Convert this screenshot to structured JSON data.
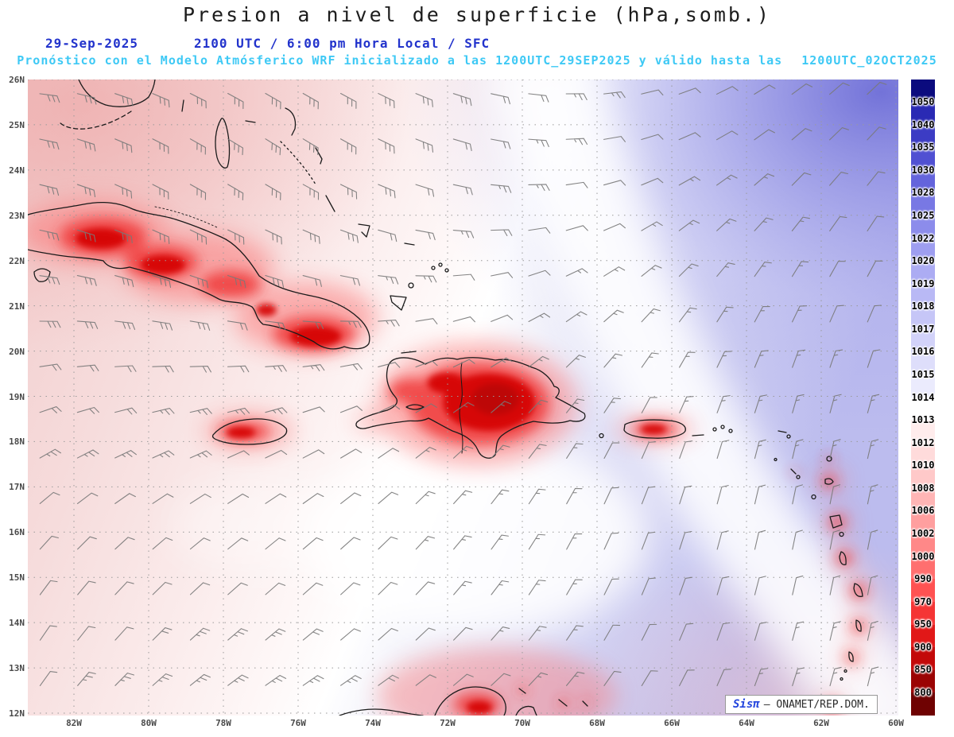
{
  "title": "Presion a nivel de superficie (hPa,somb.)",
  "subtitle": {
    "date": "29-Sep-2025",
    "time": "2100 UTC / 6:00 pm Hora Local / SFC",
    "forecast": "Pronóstico con el Modelo Atmósferico WRF inicializado a las 1200UTC_29SEP2025 y válido hasta las",
    "valid_until": "1200UTC_02OCT2025"
  },
  "theme": {
    "title_color": "#1c1c1c",
    "date_line_color": "#2233cc",
    "forecast_line_color": "#3ec9f5",
    "brand_color": "#2244dd",
    "barb_color": "#7a7a7a"
  },
  "map": {
    "lat_labels": [
      "26N",
      "25N",
      "24N",
      "23N",
      "22N",
      "21N",
      "20N",
      "19N",
      "18N",
      "17N",
      "16N",
      "15N",
      "14N",
      "13N",
      "12N"
    ],
    "lon_labels": [
      "82W",
      "80W",
      "78W",
      "76W",
      "74W",
      "72W",
      "70W",
      "68W",
      "66W",
      "64W",
      "62W",
      "60W"
    ]
  },
  "colorbar": {
    "unit": "hPa",
    "labels": [
      "1050",
      "1040",
      "1035",
      "1030",
      "1028",
      "1025",
      "1022",
      "1020",
      "1019",
      "1018",
      "1017",
      "1016",
      "1015",
      "1014",
      "1013",
      "1012",
      "1010",
      "1008",
      "1006",
      "1002",
      "1000",
      "990",
      "970",
      "950",
      "900",
      "850",
      "800"
    ],
    "colors": [
      "#0b0b7e",
      "#2a2ab4",
      "#3c3cc4",
      "#5050d2",
      "#6464dc",
      "#7878e4",
      "#8c8ceb",
      "#9e9ef0",
      "#acacf3",
      "#b9b9f5",
      "#c6c6f7",
      "#d2d2f9",
      "#dedefb",
      "#ebebfd",
      "#ffffff",
      "#ffecec",
      "#ffdbdb",
      "#ffc9c9",
      "#ffb5b5",
      "#ff9f9f",
      "#ff8888",
      "#ff6f6f",
      "#ff5252",
      "#f53535",
      "#e11818",
      "#c30909",
      "#9b0404",
      "#6f0202"
    ]
  },
  "watermark": {
    "brand": "Sisπ",
    "org": "— ONAMET/REP.DOM."
  }
}
